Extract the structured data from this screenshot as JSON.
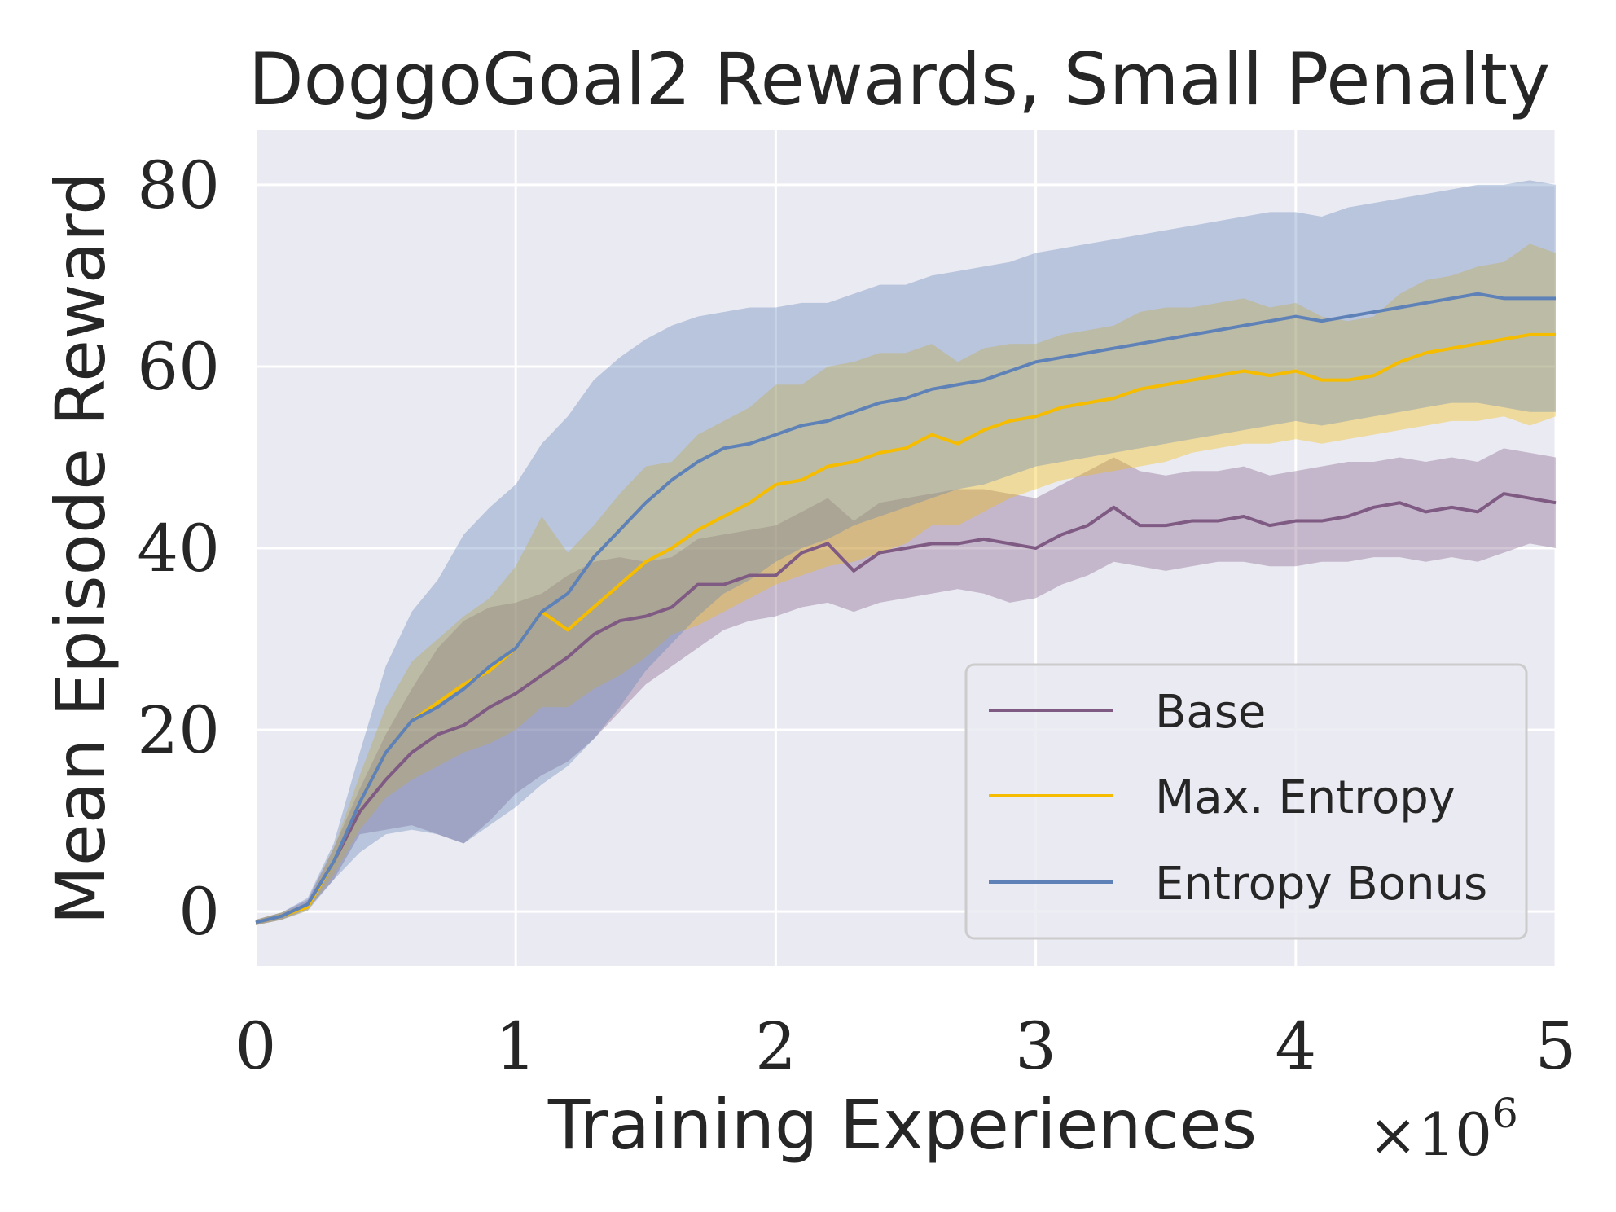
{
  "chart_data": {
    "type": "line",
    "title": "DoggoGoal2 Rewards, Small Penalty",
    "xlabel": "Training Experiences",
    "ylabel": "Mean Episode Reward",
    "x_multiplier_label": "×10",
    "x_multiplier_exponent": "6",
    "xlim": [
      0,
      5
    ],
    "ylim": [
      -6,
      86
    ],
    "xticks": [
      0,
      1,
      2,
      3,
      4,
      5
    ],
    "xtick_labels": [
      "0",
      "1",
      "2",
      "3",
      "4",
      "5"
    ],
    "yticks": [
      0,
      20,
      40,
      60,
      80
    ],
    "ytick_labels": [
      "0",
      "20",
      "40",
      "60",
      "80"
    ],
    "grid": true,
    "legend_position": "lower-right",
    "x": [
      0,
      0.1,
      0.2,
      0.3,
      0.4,
      0.5,
      0.6,
      0.7,
      0.8,
      0.9,
      1.0,
      1.1,
      1.2,
      1.3,
      1.4,
      1.5,
      1.6,
      1.7,
      1.8,
      1.9,
      2.0,
      2.1,
      2.2,
      2.3,
      2.4,
      2.5,
      2.6,
      2.7,
      2.8,
      2.9,
      3.0,
      3.1,
      3.2,
      3.3,
      3.4,
      3.5,
      3.6,
      3.7,
      3.8,
      3.9,
      4.0,
      4.1,
      4.2,
      4.3,
      4.4,
      4.5,
      4.6,
      4.7,
      4.8,
      4.9,
      5.0
    ],
    "series": [
      {
        "name": "Base",
        "color": "#7f5a83",
        "values": [
          -1.2,
          -0.5,
          0.8,
          5.5,
          11,
          14.5,
          17.5,
          19.5,
          20.5,
          22.5,
          24,
          26,
          28,
          30.5,
          32,
          32.5,
          33.5,
          36,
          36,
          37,
          37,
          39.5,
          40.5,
          37.5,
          39.5,
          40,
          40.5,
          40.5,
          41,
          40.5,
          40,
          41.5,
          42.5,
          44.5,
          42.5,
          42.5,
          43,
          43,
          43.5,
          42.5,
          43,
          43,
          43.5,
          44.5,
          45,
          44,
          44.5,
          44,
          46,
          45.5,
          45
        ],
        "lower": [
          -1.5,
          -0.9,
          0.3,
          3.5,
          8.5,
          9,
          9.5,
          8.5,
          7.5,
          10,
          13,
          15,
          16.5,
          19,
          22,
          25,
          27,
          29,
          31,
          32,
          32.5,
          33.5,
          34,
          33,
          34,
          34.5,
          35,
          35.5,
          35,
          34,
          34.5,
          36,
          37,
          38.5,
          38,
          37.5,
          38,
          38.5,
          38.5,
          38,
          38,
          38.5,
          38.5,
          39,
          39,
          38.5,
          39,
          38.5,
          39.5,
          40.5,
          40
        ],
        "upper": [
          -0.9,
          -0.1,
          1.3,
          7,
          13.5,
          19.5,
          24.5,
          29,
          32,
          33.5,
          34,
          35,
          37,
          38.5,
          39,
          38.5,
          39,
          41,
          41.5,
          42,
          42.5,
          44,
          45.5,
          43,
          45,
          45.5,
          46,
          46.5,
          46.5,
          46,
          45.5,
          47,
          48.5,
          50,
          48.5,
          48,
          48.5,
          48.5,
          49,
          48,
          48.5,
          49,
          49.5,
          49.5,
          50,
          49.5,
          50,
          49.5,
          51,
          50.5,
          50
        ]
      },
      {
        "name": "Max. Entropy",
        "color": "#f5bc00",
        "values": [
          -1.2,
          -0.5,
          0.5,
          5.5,
          12,
          17.5,
          21,
          23,
          25,
          26.5,
          29,
          33,
          31,
          33.5,
          36,
          38.5,
          40,
          42,
          43.5,
          45,
          47,
          47.5,
          49,
          49.5,
          50.5,
          51,
          52.5,
          51.5,
          53,
          54,
          54.5,
          55.5,
          56,
          56.5,
          57.5,
          58,
          58.5,
          59,
          59.5,
          59,
          59.5,
          58.5,
          58.5,
          59,
          60.5,
          61.5,
          62,
          62.5,
          63,
          63.5,
          63.5
        ],
        "lower": [
          -1.5,
          -0.9,
          0.1,
          4,
          9,
          12.5,
          14.5,
          16,
          17.5,
          18.5,
          20,
          22.5,
          22.5,
          24.5,
          26,
          28,
          30.5,
          31.5,
          33,
          34.5,
          36,
          37,
          38,
          38.5,
          39.5,
          40.5,
          42.5,
          42.5,
          44,
          45.5,
          46.5,
          47.5,
          48,
          48.5,
          49,
          49.5,
          50.5,
          51,
          51.5,
          51.5,
          52,
          51.5,
          52,
          52.5,
          53,
          53.5,
          54,
          54,
          54.5,
          53.5,
          54.5
        ],
        "upper": [
          -0.9,
          -0.1,
          0.9,
          7,
          15,
          22.5,
          27.5,
          30,
          32.5,
          34.5,
          38,
          43.5,
          39.5,
          42.5,
          46,
          49,
          49.5,
          52.5,
          54,
          55.5,
          58,
          58,
          60,
          60.5,
          61.5,
          61.5,
          62.5,
          60.5,
          62,
          62.5,
          62.5,
          63.5,
          64,
          64.5,
          66,
          66.5,
          66.5,
          67,
          67.5,
          66.5,
          67,
          65.5,
          65,
          65.5,
          68,
          69.5,
          70,
          71,
          71.5,
          73.5,
          72.5
        ]
      },
      {
        "name": "Entropy Bonus",
        "color": "#5e82b8",
        "values": [
          -1.2,
          -0.5,
          0.8,
          5.5,
          12,
          17.5,
          21,
          22.5,
          24.5,
          27,
          29,
          33,
          35,
          39,
          42,
          45,
          47.5,
          49.5,
          51,
          51.5,
          52.5,
          53.5,
          54,
          55,
          56,
          56.5,
          57.5,
          58,
          58.5,
          59.5,
          60.5,
          61,
          61.5,
          62,
          62.5,
          63,
          63.5,
          64,
          64.5,
          65,
          65.5,
          65,
          65.5,
          66,
          66.5,
          67,
          67.5,
          68,
          67.5,
          67.5,
          67.5
        ],
        "lower": [
          -1.5,
          -0.9,
          0.1,
          3.5,
          6.5,
          8.5,
          9,
          8.5,
          7.5,
          9.5,
          11.5,
          14,
          16,
          19,
          22.5,
          26.5,
          29.5,
          32.5,
          35,
          36.5,
          38.5,
          40,
          41,
          42.5,
          43.5,
          44.5,
          45.5,
          46.5,
          47,
          48,
          49,
          49.5,
          50,
          50.5,
          51,
          51.5,
          52,
          52.5,
          53,
          53.5,
          54,
          53.5,
          54,
          54.5,
          55,
          55.5,
          56,
          56,
          55.5,
          55,
          55
        ],
        "upper": [
          -0.9,
          -0.1,
          1.5,
          7.5,
          17.5,
          27,
          33,
          36.5,
          41.5,
          44.5,
          47,
          51.5,
          54.5,
          58.5,
          61,
          63,
          64.5,
          65.5,
          66,
          66.5,
          66.5,
          67,
          67,
          68,
          69,
          69,
          70,
          70.5,
          71,
          71.5,
          72.5,
          73,
          73.5,
          74,
          74.5,
          75,
          75.5,
          76,
          76.5,
          77,
          77,
          76.5,
          77.5,
          78,
          78.5,
          79,
          79.5,
          80,
          80,
          80.5,
          80
        ]
      }
    ]
  }
}
